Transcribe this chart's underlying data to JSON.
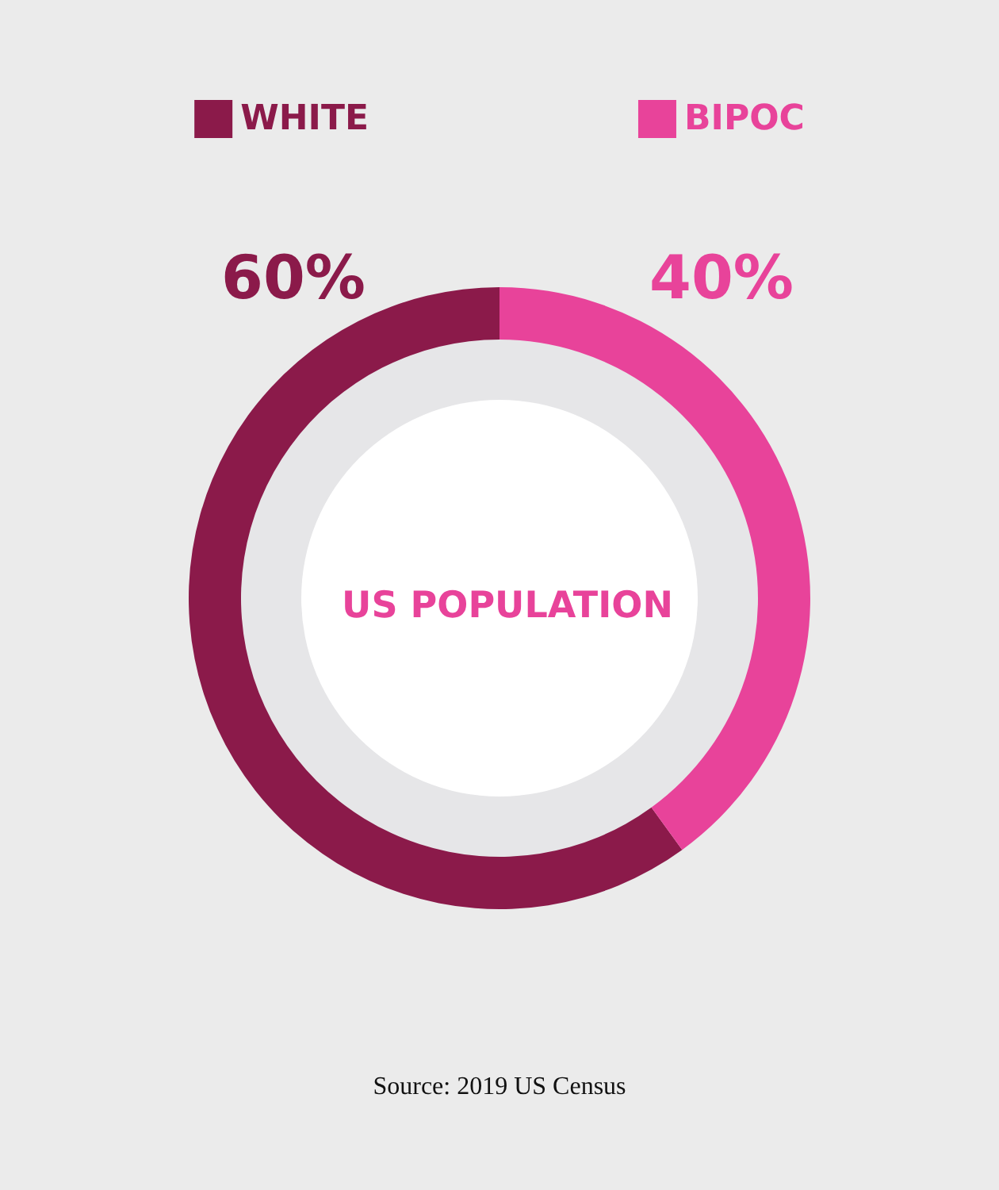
{
  "chart_data": {
    "type": "donut",
    "title": "US POPULATION",
    "categories": [
      "WHITE",
      "BIPOC"
    ],
    "values": [
      60,
      40
    ],
    "colors": [
      "#8b1a4a",
      "#e8439a"
    ],
    "value_labels": [
      "60%",
      "40%"
    ],
    "legend": "top",
    "annotations": [
      "Source: 2019 US Census"
    ]
  }
}
